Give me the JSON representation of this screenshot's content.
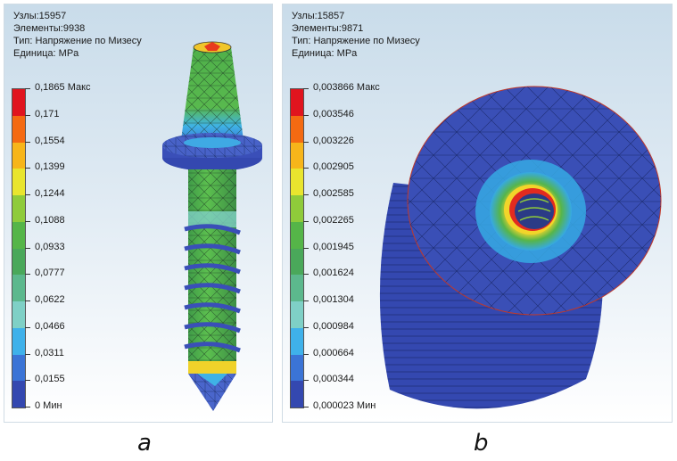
{
  "panels": [
    {
      "info": {
        "nodes": "Узлы:15957",
        "elements": "Элементы:9938",
        "type": "Тип: Напряжение по Мизесу",
        "unit": "Единица: MPa"
      },
      "legend_labels": [
        "0,1865 Макс",
        "0,171",
        "0,1554",
        "0,1399",
        "0,1244",
        "0,1088",
        "0,0933",
        "0,0777",
        "0,0622",
        "0,0466",
        "0,0311",
        "0,0155",
        "0 Мин"
      ],
      "caption": "a"
    },
    {
      "info": {
        "nodes": "Узлы:15857",
        "elements": "Элементы:9871",
        "type": "Тип: Напряжение по Мизесу",
        "unit": "Единица: MPa"
      },
      "legend_labels": [
        "0,003866 Макс",
        "0,003546",
        "0,003226",
        "0,002905",
        "0,002585",
        "0,002265",
        "0,001945",
        "0,001624",
        "0,001304",
        "0,000984",
        "0,000664",
        "0,000344",
        "0,000023 Мин"
      ],
      "caption": "b"
    }
  ],
  "legend_colors": [
    "#e0141e",
    "#f46a12",
    "#f7b51a",
    "#e9e52e",
    "#8fcb3a",
    "#55b548",
    "#4aa85a",
    "#5cb88d",
    "#7fd0c6",
    "#3fb1ea",
    "#3b74d6",
    "#3448b0"
  ],
  "colors": {
    "mesh_blue": "#3a4fb0",
    "mesh_green": "#56b54a",
    "mesh_cyan": "#36a9e4",
    "mesh_yellow": "#f2d52a",
    "mesh_red": "#e22b1f"
  }
}
